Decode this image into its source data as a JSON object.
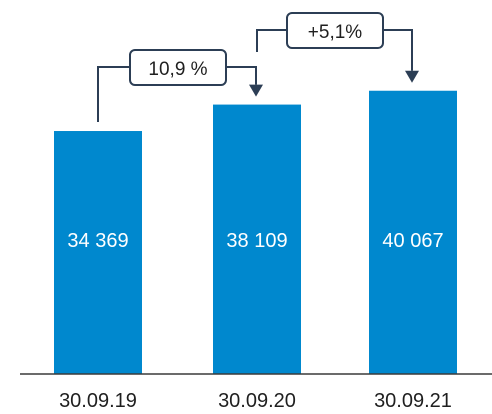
{
  "chart_data": {
    "type": "bar",
    "categories": [
      "30.09.19",
      "30.09.20",
      "30.09.21"
    ],
    "values": [
      34369,
      38109,
      40067
    ],
    "value_labels": [
      "34 369",
      "38 109",
      "40 067"
    ],
    "ylim": [
      0,
      43000
    ],
    "grid": false,
    "colors": {
      "bar": "#0088CE",
      "connector": "#2c3e55"
    },
    "annotations": [
      {
        "from": 0,
        "to": 1,
        "text": "10,9 %"
      },
      {
        "from": 1,
        "to": 2,
        "text": "+5,1%"
      }
    ]
  }
}
